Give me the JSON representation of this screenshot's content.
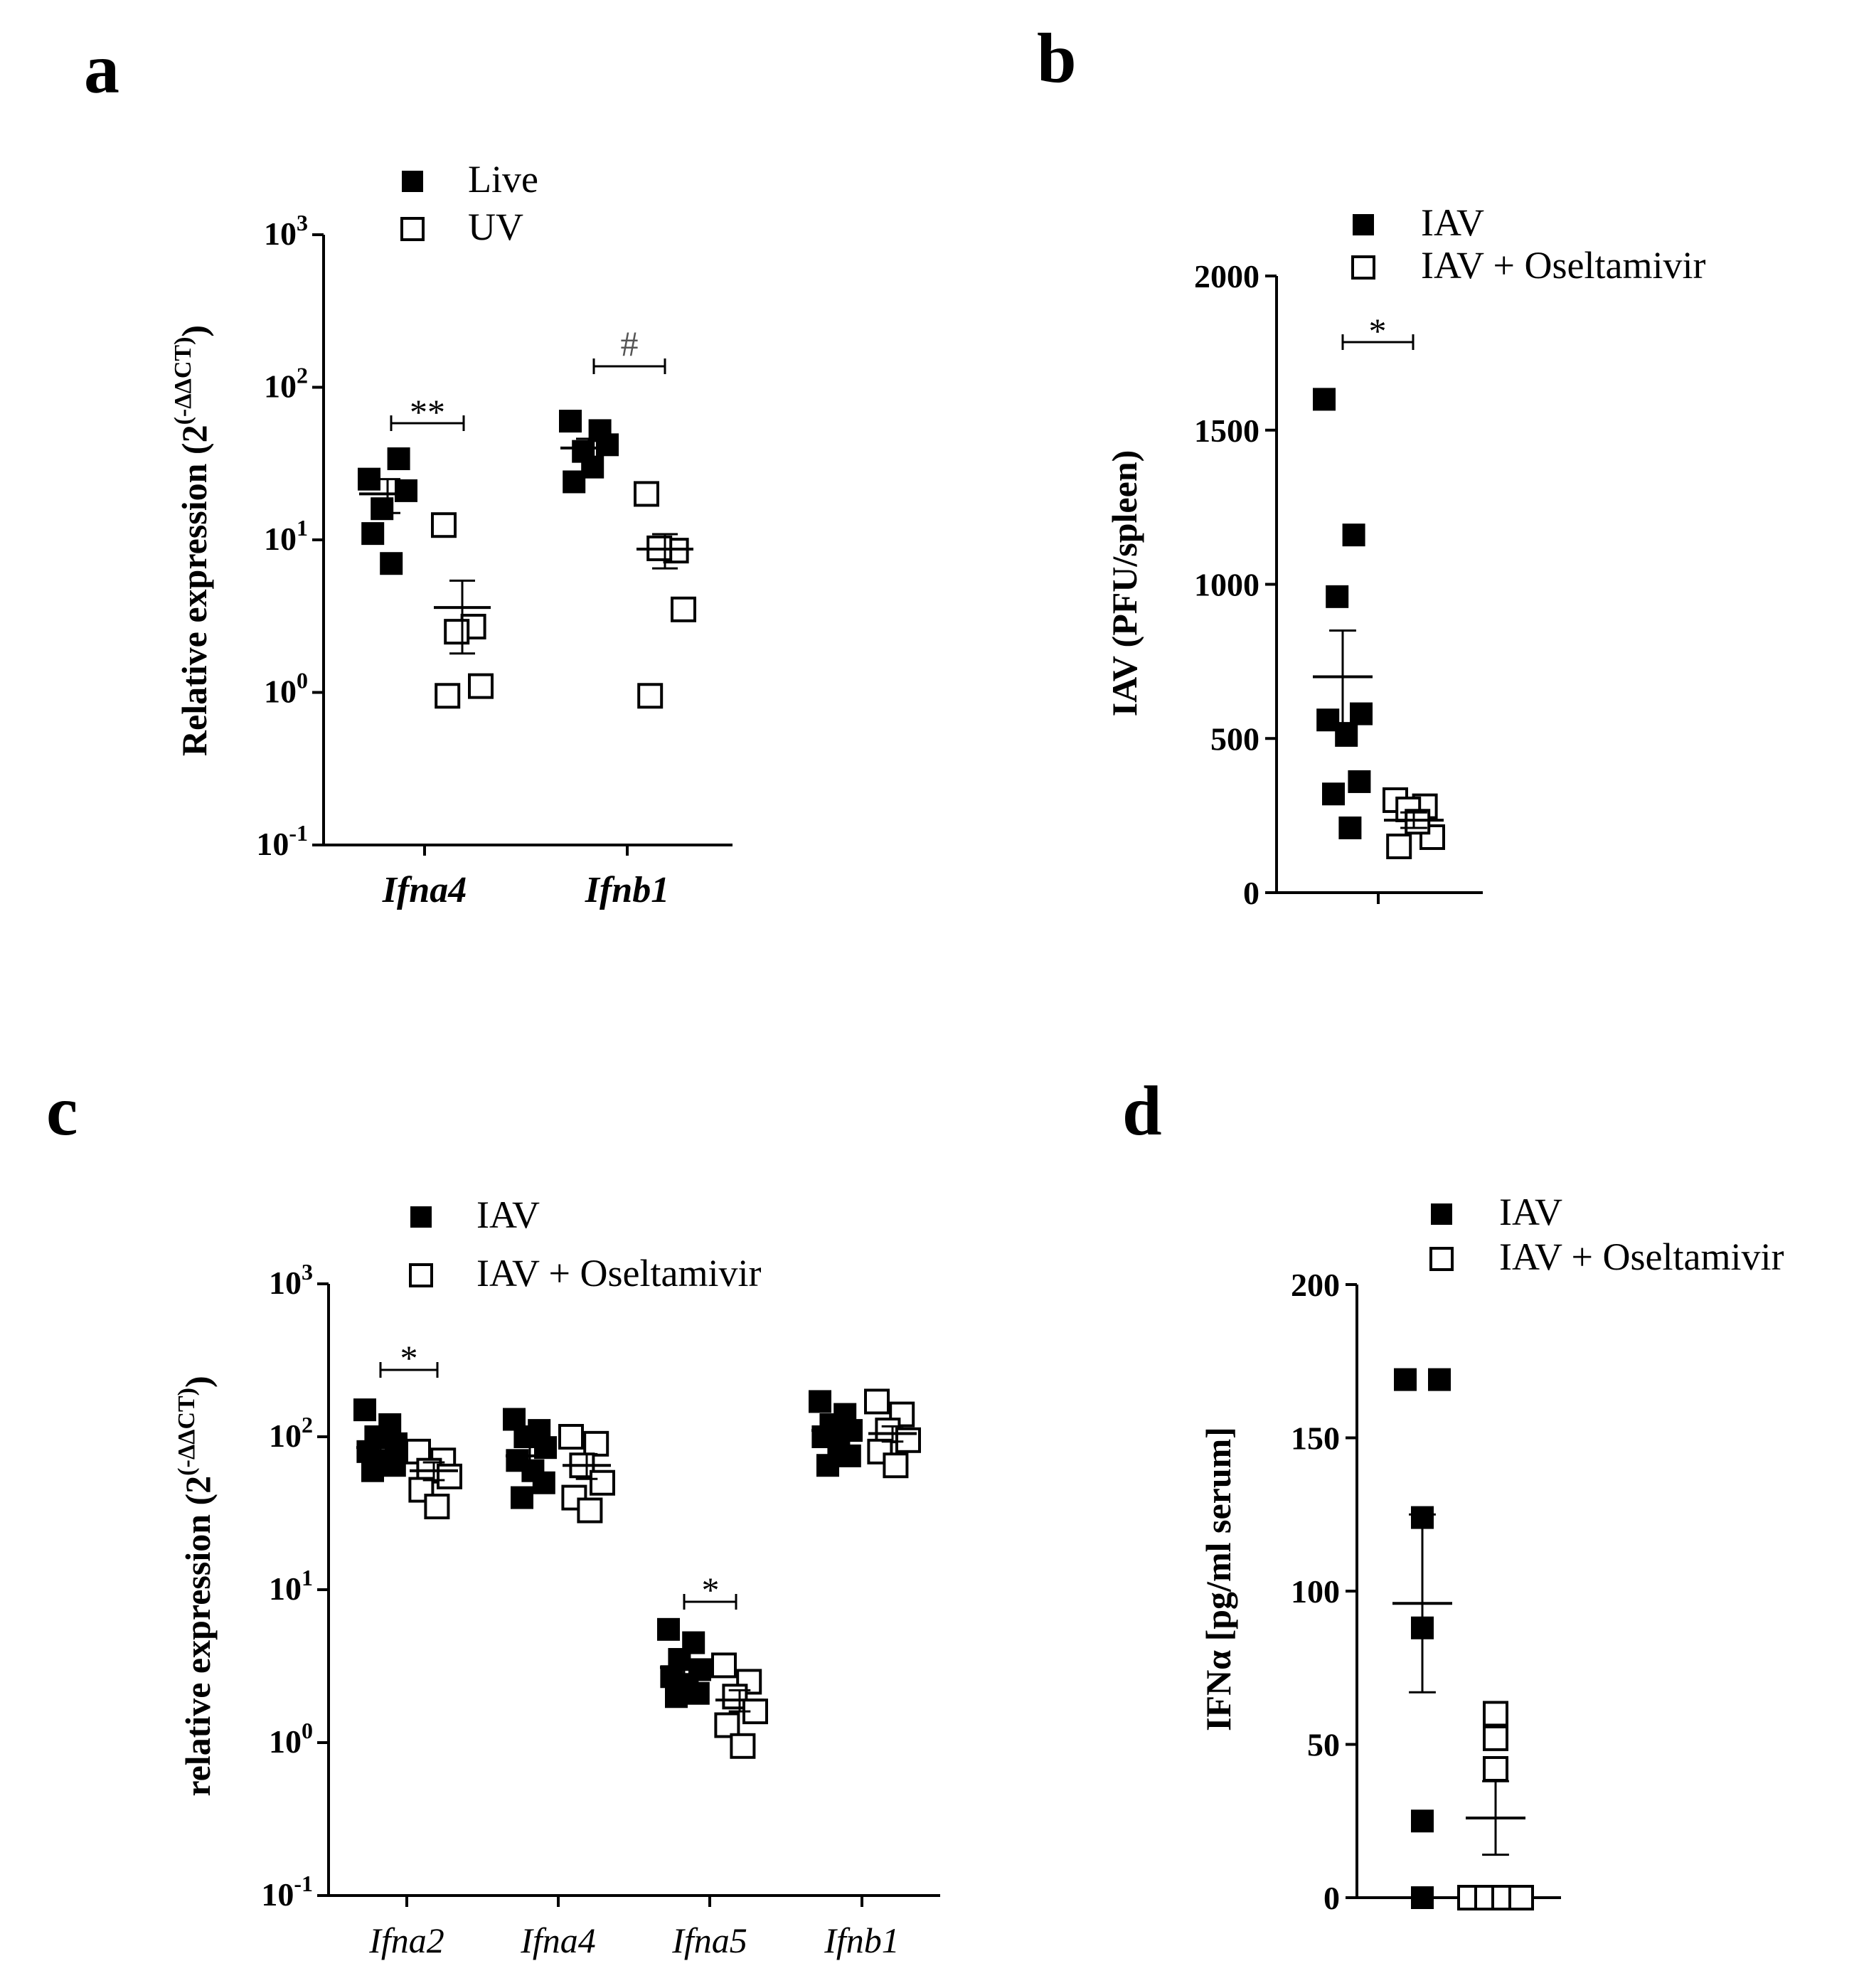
{
  "panels": {
    "a": {
      "letter": "a",
      "legend": [
        {
          "label": "Live",
          "filled": true
        },
        {
          "label": "UV",
          "filled": false
        }
      ],
      "significance": [
        "**",
        "#"
      ]
    },
    "b": {
      "letter": "b",
      "legend": [
        {
          "label": "IAV",
          "filled": true
        },
        {
          "label": "IAV + Oseltamivir",
          "filled": false
        }
      ],
      "significance": [
        "*"
      ]
    },
    "c": {
      "letter": "c",
      "legend": [
        {
          "label": "IAV",
          "filled": true
        },
        {
          "label": "IAV + Oseltamivir",
          "filled": false
        }
      ],
      "significance": [
        "*",
        "*"
      ]
    },
    "d": {
      "letter": "d",
      "legend": [
        {
          "label": "IAV",
          "filled": true
        },
        {
          "label": "IAV + Oseltamivir",
          "filled": false
        }
      ]
    }
  },
  "colors": {
    "marker": "#000000",
    "open_fill": "#ffffff",
    "axis": "#000000"
  },
  "chart_data": [
    {
      "id": "a",
      "type": "scatter",
      "scale": "log",
      "ylim": [
        0.1,
        1000
      ],
      "ylabel": "Relative expression (2",
      "ylabel_sup": "(-ΔΔCT)",
      "ylabel_close": ")",
      "yticks": [
        {
          "base": "10",
          "exp": "3"
        },
        {
          "base": "10",
          "exp": "2"
        },
        {
          "base": "10",
          "exp": "1"
        },
        {
          "base": "10",
          "exp": "0"
        },
        {
          "base": "10",
          "exp": "-1"
        }
      ],
      "categories": [
        "Ifna4",
        "Ifnb1"
      ],
      "series": [
        {
          "name": "Live",
          "values": [
            [
              25,
              34,
              16,
              21,
              11,
              7
            ],
            [
              60,
              52,
              38,
              42,
              24,
              30
            ]
          ],
          "mean": [
            20,
            40
          ],
          "sem": [
            5,
            6
          ]
        },
        {
          "name": "UV",
          "values": [
            [
              12.5,
              2.7,
              2.5,
              1.1,
              0.95
            ],
            [
              20,
              8.5,
              8.8,
              3.5,
              0.95
            ]
          ],
          "mean": [
            3.6,
            8.7
          ],
          "sem": [
            1.8,
            2.2
          ]
        }
      ]
    },
    {
      "id": "b",
      "type": "scatter",
      "scale": "linear",
      "ylim": [
        0,
        2000
      ],
      "ylabel": "IAV (PFU/spleen)",
      "yticks": [
        "2000",
        "1500",
        "1000",
        "500",
        "0"
      ],
      "series": [
        {
          "name": "IAV",
          "values": [
            1600,
            1160,
            960,
            580,
            560,
            510,
            360,
            320,
            210
          ],
          "mean": 700,
          "sem": 150
        },
        {
          "name": "IAV + Oseltamivir",
          "values": [
            300,
            280,
            270,
            180,
            150,
            230
          ],
          "mean": 235,
          "sem": 25
        }
      ]
    },
    {
      "id": "c",
      "type": "scatter",
      "scale": "log",
      "ylim": [
        0.1,
        1000
      ],
      "ylabel": "relative expression (2",
      "ylabel_sup": "(-ΔΔCT)",
      "ylabel_close": ")",
      "yticks": [
        {
          "base": "10",
          "exp": "3"
        },
        {
          "base": "10",
          "exp": "2"
        },
        {
          "base": "10",
          "exp": "1"
        },
        {
          "base": "10",
          "exp": "0"
        },
        {
          "base": "10",
          "exp": "-1"
        }
      ],
      "categories": [
        "Ifna2",
        "Ifna4",
        "Ifna5",
        "Ifnb1"
      ],
      "series": [
        {
          "name": "IAV",
          "values": [
            [
              150,
              120,
              100,
              90,
              80,
              70,
              65,
              60
            ],
            [
              130,
              110,
              100,
              85,
              70,
              60,
              50,
              40
            ],
            [
              5.5,
              4.5,
              3.5,
              3.0,
              2.7,
              2.4,
              2.1,
              2.0
            ],
            [
              170,
              140,
              120,
              110,
              100,
              90,
              75,
              65
            ]
          ],
          "mean": [
            85,
            75,
            3.1,
            110
          ],
          "sem": [
            12,
            12,
            0.4,
            12
          ]
        },
        {
          "name": "IAV + Oseltamivir",
          "values": [
            [
              80,
              70,
              60,
              55,
              45,
              35
            ],
            [
              100,
              90,
              65,
              50,
              40,
              33
            ],
            [
              3.2,
              2.5,
              2.0,
              1.6,
              1.3,
              0.95
            ],
            [
              170,
              140,
              110,
              95,
              80,
              65
            ]
          ],
          "mean": [
            60,
            65,
            1.9,
            105
          ],
          "sem": [
            8,
            12,
            0.3,
            12
          ]
        }
      ]
    },
    {
      "id": "d",
      "type": "scatter",
      "scale": "linear",
      "ylim": [
        0,
        200
      ],
      "ylabel": "IFNα [pg/ml serum]",
      "yticks": [
        "200",
        "150",
        "100",
        "50",
        "0"
      ],
      "series": [
        {
          "name": "IAV",
          "values": [
            169,
            169,
            124,
            88,
            25,
            0
          ],
          "mean": 96,
          "sem": 29
        },
        {
          "name": "IAV + Oseltamivir",
          "values": [
            60,
            52,
            42,
            0,
            0,
            0,
            0
          ],
          "mean": 26,
          "sem": 12
        }
      ]
    }
  ]
}
